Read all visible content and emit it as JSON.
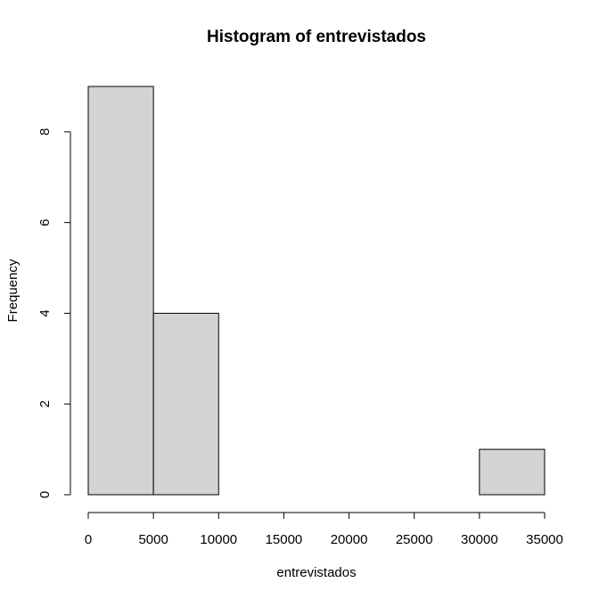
{
  "chart_data": {
    "type": "bar",
    "title": "Histogram of entrevistados",
    "xlabel": "entrevistados",
    "ylabel": "Frequency",
    "bins": [
      {
        "start": 0,
        "end": 5000,
        "count": 9
      },
      {
        "start": 5000,
        "end": 10000,
        "count": 4
      },
      {
        "start": 10000,
        "end": 15000,
        "count": 0
      },
      {
        "start": 15000,
        "end": 20000,
        "count": 0
      },
      {
        "start": 20000,
        "end": 25000,
        "count": 0
      },
      {
        "start": 25000,
        "end": 30000,
        "count": 0
      },
      {
        "start": 30000,
        "end": 35000,
        "count": 1
      }
    ],
    "xlim": [
      0,
      35000
    ],
    "ylim": [
      0,
      9
    ],
    "xticks": [
      0,
      5000,
      10000,
      15000,
      20000,
      25000,
      30000,
      35000
    ],
    "yticks": [
      0,
      2,
      4,
      6,
      8
    ],
    "bar_color": "#d3d3d3",
    "grid": false
  }
}
